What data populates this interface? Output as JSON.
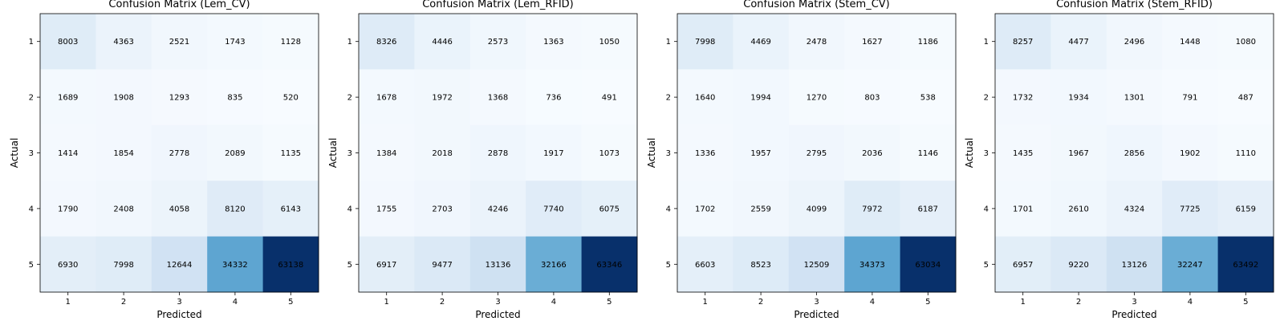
{
  "chart_data": [
    {
      "type": "heatmap",
      "title": "Confusion Matrix (Lem_CV)",
      "xlabel": "Predicted",
      "ylabel": "Actual",
      "x_categories": [
        "1",
        "2",
        "3",
        "4",
        "5"
      ],
      "y_categories": [
        "1",
        "2",
        "3",
        "4",
        "5"
      ],
      "colormap": "Blues",
      "values": [
        [
          8003,
          4363,
          2521,
          1743,
          1128
        ],
        [
          1689,
          1908,
          1293,
          835,
          520
        ],
        [
          1414,
          1854,
          2778,
          2089,
          1135
        ],
        [
          1790,
          2408,
          4058,
          8120,
          6143
        ],
        [
          6930,
          7998,
          12644,
          34332,
          63138
        ]
      ]
    },
    {
      "type": "heatmap",
      "title": "Confusion Matrix (Lem_RFID)",
      "xlabel": "Predicted",
      "ylabel": "Actual",
      "x_categories": [
        "1",
        "2",
        "3",
        "4",
        "5"
      ],
      "y_categories": [
        "1",
        "2",
        "3",
        "4",
        "5"
      ],
      "colormap": "Blues",
      "values": [
        [
          8326,
          4446,
          2573,
          1363,
          1050
        ],
        [
          1678,
          1972,
          1368,
          736,
          491
        ],
        [
          1384,
          2018,
          2878,
          1917,
          1073
        ],
        [
          1755,
          2703,
          4246,
          7740,
          6075
        ],
        [
          6917,
          9477,
          13136,
          32166,
          63346
        ]
      ]
    },
    {
      "type": "heatmap",
      "title": "Confusion Matrix (Stem_CV)",
      "xlabel": "Predicted",
      "ylabel": "Actual",
      "x_categories": [
        "1",
        "2",
        "3",
        "4",
        "5"
      ],
      "y_categories": [
        "1",
        "2",
        "3",
        "4",
        "5"
      ],
      "colormap": "Blues",
      "values": [
        [
          7998,
          4469,
          2478,
          1627,
          1186
        ],
        [
          1640,
          1994,
          1270,
          803,
          538
        ],
        [
          1336,
          1957,
          2795,
          2036,
          1146
        ],
        [
          1702,
          2559,
          4099,
          7972,
          6187
        ],
        [
          6603,
          8523,
          12509,
          34373,
          63034
        ]
      ]
    },
    {
      "type": "heatmap",
      "title": "Confusion Matrix (Stem_RFID)",
      "xlabel": "Predicted",
      "ylabel": "Actual",
      "x_categories": [
        "1",
        "2",
        "3",
        "4",
        "5"
      ],
      "y_categories": [
        "1",
        "2",
        "3",
        "4",
        "5"
      ],
      "colormap": "Blues",
      "values": [
        [
          8257,
          4477,
          2496,
          1448,
          1080
        ],
        [
          1732,
          1934,
          1301,
          791,
          487
        ],
        [
          1435,
          1967,
          2856,
          1902,
          1110
        ],
        [
          1701,
          2610,
          4324,
          7725,
          6159
        ],
        [
          6957,
          9220,
          13126,
          32247,
          63492
        ]
      ]
    }
  ]
}
